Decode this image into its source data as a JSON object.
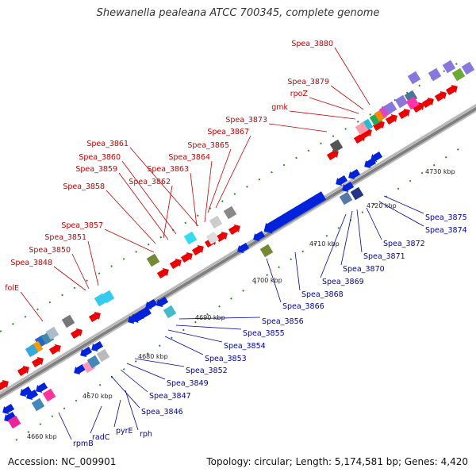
{
  "title": "Shewanella pealeana ATCC 700345, complete genome",
  "footer": {
    "accession": "Accession: NC_009901",
    "summary": "Topology: circular; Length: 5,174,581 bp; Genes: 4,420"
  },
  "colors": {
    "forward_gene": "#ee0000",
    "reverse_gene": "#0022dd",
    "forward_label": "#cc0000",
    "reverse_label": "#0000aa",
    "backbone": "#8a8a8a"
  },
  "kbp_ticks": [
    "4660 kbp",
    "4670 kbp",
    "4680 kbp",
    "4690 kbp",
    "4700 kbp",
    "4710 kbp",
    "4720 kbp",
    "4730 kbp"
  ],
  "forward_labels": [
    "Spea_3880",
    "Spea_3879",
    "rpoZ",
    "gmk",
    "Spea_3873",
    "Spea_3867",
    "Spea_3865",
    "Spea_3864",
    "Spea_3861",
    "Spea_3860",
    "Spea_3859",
    "Spea_3863",
    "Spea_3862",
    "Spea_3858",
    "Spea_3857",
    "Spea_3851",
    "Spea_3850",
    "Spea_3848",
    "folE"
  ],
  "reverse_labels": [
    "Spea_3875",
    "Spea_3874",
    "Spea_3872",
    "Spea_3871",
    "Spea_3870",
    "Spea_3869",
    "Spea_3868",
    "Spea_3866",
    "Spea_3856",
    "Spea_3855",
    "Spea_3854",
    "Spea_3853",
    "Spea_3852",
    "Spea_3849",
    "Spea_3847",
    "Spea_3846",
    "rph",
    "pyrE",
    "radC",
    "rpmB"
  ]
}
